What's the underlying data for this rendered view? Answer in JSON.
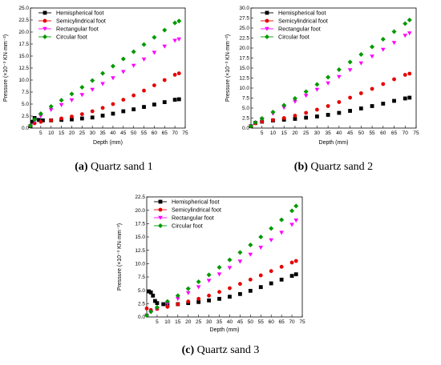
{
  "figure": {
    "chart_data": [
      {
        "type": "scatter",
        "caption_letter": "(a)",
        "caption_text": " Quartz sand 1",
        "xlabel": "Depth (mm)",
        "ylabel": "Pressure (×10⁻³ KN·mm⁻²)",
        "xlim": [
          0,
          75
        ],
        "ylim": [
          0,
          25
        ],
        "xticks": [
          "5",
          "10",
          "15",
          "20",
          "25",
          "30",
          "35",
          "40",
          "45",
          "50",
          "55",
          "60",
          "65",
          "70",
          "75"
        ],
        "yticks": [
          "0.0",
          "2.5",
          "5.0",
          "7.5",
          "10.0",
          "12.5",
          "15.0",
          "17.5",
          "20.0",
          "22.5",
          "25.0"
        ],
        "legend_position": "top-left",
        "series": [
          {
            "name": "Hemispherical foot",
            "color": "#000000",
            "marker": "square",
            "points": [
              [
                0,
                0.4
              ],
              [
                1,
                1.3
              ],
              [
                2,
                2.1
              ],
              [
                4,
                1.7
              ],
              [
                6,
                1.6
              ],
              [
                10,
                1.6
              ],
              [
                15,
                1.7
              ],
              [
                20,
                1.8
              ],
              [
                25,
                2.0
              ],
              [
                30,
                2.2
              ],
              [
                35,
                2.6
              ],
              [
                40,
                3.0
              ],
              [
                45,
                3.5
              ],
              [
                50,
                3.9
              ],
              [
                55,
                4.4
              ],
              [
                60,
                4.9
              ],
              [
                65,
                5.4
              ],
              [
                70,
                5.9
              ],
              [
                72,
                6.0
              ]
            ]
          },
          {
            "name": "Semicylindrical foot",
            "color": "#e60000",
            "marker": "circle",
            "points": [
              [
                0,
                0.5
              ],
              [
                2,
                1.0
              ],
              [
                5,
                1.3
              ],
              [
                10,
                1.6
              ],
              [
                15,
                2.0
              ],
              [
                20,
                2.4
              ],
              [
                25,
                2.9
              ],
              [
                30,
                3.5
              ],
              [
                35,
                4.2
              ],
              [
                40,
                5.0
              ],
              [
                45,
                5.9
              ],
              [
                50,
                6.8
              ],
              [
                55,
                7.8
              ],
              [
                60,
                8.9
              ],
              [
                65,
                10.0
              ],
              [
                70,
                11.1
              ],
              [
                72,
                11.4
              ]
            ]
          },
          {
            "name": "Rectangular foot",
            "color": "#ff00ff",
            "marker": "triangle-down",
            "points": [
              [
                0,
                0.4
              ],
              [
                2,
                1.5
              ],
              [
                5,
                2.5
              ],
              [
                10,
                3.8
              ],
              [
                15,
                4.8
              ],
              [
                20,
                5.8
              ],
              [
                25,
                6.9
              ],
              [
                30,
                8.0
              ],
              [
                35,
                9.2
              ],
              [
                40,
                10.4
              ],
              [
                45,
                11.7
              ],
              [
                50,
                13.0
              ],
              [
                55,
                14.3
              ],
              [
                60,
                15.7
              ],
              [
                65,
                17.0
              ],
              [
                70,
                18.2
              ],
              [
                72,
                18.5
              ]
            ]
          },
          {
            "name": "Circular foot",
            "color": "#009900",
            "marker": "diamond",
            "points": [
              [
                0,
                0.5
              ],
              [
                2,
                1.8
              ],
              [
                5,
                3.0
              ],
              [
                10,
                4.5
              ],
              [
                15,
                5.8
              ],
              [
                20,
                7.1
              ],
              [
                25,
                8.5
              ],
              [
                30,
                9.9
              ],
              [
                35,
                11.4
              ],
              [
                40,
                12.9
              ],
              [
                45,
                14.4
              ],
              [
                50,
                15.9
              ],
              [
                55,
                17.4
              ],
              [
                60,
                18.9
              ],
              [
                65,
                20.4
              ],
              [
                70,
                21.9
              ],
              [
                72,
                22.3
              ]
            ]
          }
        ]
      },
      {
        "type": "scatter",
        "caption_letter": "(b)",
        "caption_text": " Quartz sand 2",
        "xlabel": "Depth (mm)",
        "ylabel": "Pressure (×10⁻³ KN·mm⁻²)",
        "xlim": [
          0,
          75
        ],
        "ylim": [
          0,
          30
        ],
        "xticks": [
          "5",
          "10",
          "15",
          "20",
          "25",
          "30",
          "35",
          "40",
          "45",
          "50",
          "55",
          "60",
          "65",
          "70",
          "75"
        ],
        "yticks": [
          "0.0",
          "2.5",
          "5.0",
          "7.5",
          "10.0",
          "12.5",
          "15.0",
          "17.5",
          "20.0",
          "22.5",
          "25.0",
          "27.5",
          "30.0"
        ],
        "legend_position": "top-left",
        "series": [
          {
            "name": "Hemispherical foot",
            "color": "#000000",
            "marker": "square",
            "points": [
              [
                0,
                0.5
              ],
              [
                2,
                1.3
              ],
              [
                5,
                1.6
              ],
              [
                10,
                1.9
              ],
              [
                15,
                2.1
              ],
              [
                20,
                2.3
              ],
              [
                25,
                2.6
              ],
              [
                30,
                2.9
              ],
              [
                35,
                3.3
              ],
              [
                40,
                3.8
              ],
              [
                45,
                4.3
              ],
              [
                50,
                4.9
              ],
              [
                55,
                5.5
              ],
              [
                60,
                6.1
              ],
              [
                65,
                6.8
              ],
              [
                70,
                7.4
              ],
              [
                72,
                7.6
              ]
            ]
          },
          {
            "name": "Semicylindrical foot",
            "color": "#e60000",
            "marker": "circle",
            "points": [
              [
                0,
                0.5
              ],
              [
                2,
                1.2
              ],
              [
                5,
                1.6
              ],
              [
                10,
                2.0
              ],
              [
                15,
                2.5
              ],
              [
                20,
                3.1
              ],
              [
                25,
                3.8
              ],
              [
                30,
                4.6
              ],
              [
                35,
                5.5
              ],
              [
                40,
                6.5
              ],
              [
                45,
                7.6
              ],
              [
                50,
                8.7
              ],
              [
                55,
                9.8
              ],
              [
                60,
                11.0
              ],
              [
                65,
                12.2
              ],
              [
                70,
                13.3
              ],
              [
                72,
                13.6
              ]
            ]
          },
          {
            "name": "Rectangular foot",
            "color": "#ff00ff",
            "marker": "triangle-down",
            "points": [
              [
                0,
                0.5
              ],
              [
                2,
                1.3
              ],
              [
                5,
                2.2
              ],
              [
                10,
                3.6
              ],
              [
                15,
                5.1
              ],
              [
                20,
                6.6
              ],
              [
                25,
                8.1
              ],
              [
                30,
                9.6
              ],
              [
                35,
                11.2
              ],
              [
                40,
                12.8
              ],
              [
                45,
                14.5
              ],
              [
                50,
                16.2
              ],
              [
                55,
                17.9
              ],
              [
                60,
                19.6
              ],
              [
                65,
                21.3
              ],
              [
                70,
                23.1
              ],
              [
                72,
                23.7
              ]
            ]
          },
          {
            "name": "Circular foot",
            "color": "#009900",
            "marker": "diamond",
            "points": [
              [
                0,
                0.5
              ],
              [
                2,
                1.4
              ],
              [
                5,
                2.4
              ],
              [
                10,
                4.0
              ],
              [
                15,
                5.7
              ],
              [
                20,
                7.4
              ],
              [
                25,
                9.1
              ],
              [
                30,
                10.9
              ],
              [
                35,
                12.7
              ],
              [
                40,
                14.6
              ],
              [
                45,
                16.5
              ],
              [
                50,
                18.4
              ],
              [
                55,
                20.3
              ],
              [
                60,
                22.2
              ],
              [
                65,
                24.1
              ],
              [
                70,
                26.1
              ],
              [
                72,
                27.0
              ]
            ]
          }
        ]
      },
      {
        "type": "scatter",
        "caption_letter": "(c)",
        "caption_text": " Quartz sand 3",
        "xlabel": "Depth (mm)",
        "ylabel": "Pressure (×10⁻³ KN·mm⁻²)",
        "xlim": [
          0,
          75
        ],
        "ylim": [
          0,
          22.5
        ],
        "xticks": [
          "5",
          "10",
          "15",
          "20",
          "25",
          "30",
          "35",
          "40",
          "45",
          "50",
          "55",
          "60",
          "65",
          "70",
          "75"
        ],
        "yticks": [
          "0.0",
          "2.5",
          "5.0",
          "7.5",
          "10.0",
          "12.5",
          "15.0",
          "17.5",
          "20.0",
          "22.5"
        ],
        "legend_position": "top-left",
        "series": [
          {
            "name": "Hemispherical foot",
            "color": "#000000",
            "marker": "square",
            "points": [
              [
                1,
                4.8
              ],
              [
                2,
                4.6
              ],
              [
                3,
                4.0
              ],
              [
                4,
                3.0
              ],
              [
                5,
                2.6
              ],
              [
                8,
                2.4
              ],
              [
                10,
                2.3
              ],
              [
                15,
                2.4
              ],
              [
                20,
                2.6
              ],
              [
                25,
                2.8
              ],
              [
                30,
                3.1
              ],
              [
                35,
                3.4
              ],
              [
                40,
                3.8
              ],
              [
                45,
                4.3
              ],
              [
                50,
                4.9
              ],
              [
                55,
                5.6
              ],
              [
                60,
                6.3
              ],
              [
                65,
                7.0
              ],
              [
                70,
                7.7
              ],
              [
                72,
                8.0
              ]
            ]
          },
          {
            "name": "Semicylindrical foot",
            "color": "#e60000",
            "marker": "circle",
            "points": [
              [
                0,
                1.6
              ],
              [
                2,
                1.3
              ],
              [
                5,
                1.5
              ],
              [
                10,
                1.9
              ],
              [
                15,
                2.4
              ],
              [
                20,
                2.9
              ],
              [
                25,
                3.4
              ],
              [
                30,
                4.0
              ],
              [
                35,
                4.7
              ],
              [
                40,
                5.4
              ],
              [
                45,
                6.2
              ],
              [
                50,
                7.0
              ],
              [
                55,
                7.8
              ],
              [
                60,
                8.6
              ],
              [
                65,
                9.4
              ],
              [
                70,
                10.2
              ],
              [
                72,
                10.5
              ]
            ]
          },
          {
            "name": "Rectangular foot",
            "color": "#ff00ff",
            "marker": "triangle-down",
            "points": [
              [
                0,
                0.3
              ],
              [
                2,
                0.9
              ],
              [
                5,
                1.6
              ],
              [
                10,
                2.5
              ],
              [
                15,
                3.4
              ],
              [
                20,
                4.5
              ],
              [
                25,
                5.6
              ],
              [
                30,
                6.8
              ],
              [
                35,
                8.0
              ],
              [
                40,
                9.2
              ],
              [
                45,
                10.4
              ],
              [
                50,
                11.7
              ],
              [
                55,
                13.0
              ],
              [
                60,
                14.4
              ],
              [
                65,
                15.8
              ],
              [
                70,
                17.3
              ],
              [
                72,
                18.1
              ]
            ]
          },
          {
            "name": "Circular foot",
            "color": "#009900",
            "marker": "diamond",
            "points": [
              [
                0,
                0.3
              ],
              [
                2,
                1.0
              ],
              [
                5,
                1.8
              ],
              [
                10,
                2.9
              ],
              [
                15,
                4.0
              ],
              [
                20,
                5.3
              ],
              [
                25,
                6.6
              ],
              [
                30,
                7.9
              ],
              [
                35,
                9.3
              ],
              [
                40,
                10.7
              ],
              [
                45,
                12.1
              ],
              [
                50,
                13.5
              ],
              [
                55,
                15.0
              ],
              [
                60,
                16.6
              ],
              [
                65,
                18.2
              ],
              [
                70,
                19.9
              ],
              [
                72,
                20.8
              ]
            ]
          }
        ]
      }
    ]
  }
}
